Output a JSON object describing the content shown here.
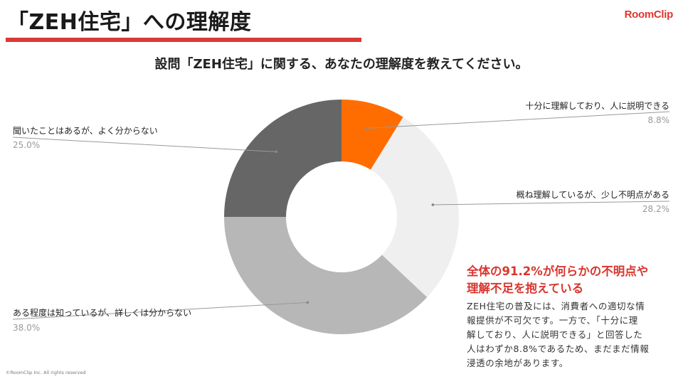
{
  "header": {
    "title": "「ZEH住宅」への理解度",
    "logo": "RoomClip"
  },
  "question": "設問「ZEH住宅」に関する、あなたの理解度を教えてください。",
  "chart_data": {
    "type": "pie",
    "donut": true,
    "legend_placement": "outside-with-leader-lines",
    "slices": [
      {
        "label": "十分に理解しており、人に説明できる",
        "value": 8.8,
        "value_label": "8.8%",
        "color": "#ff6d01"
      },
      {
        "label": "概ね理解しているが、少し不明点がある",
        "value": 28.2,
        "value_label": "28.2%",
        "color": "#efefef"
      },
      {
        "label": "ある程度は知っているが、詳しくは分からない",
        "value": 38.0,
        "value_label": "38.0%",
        "color": "#b7b7b7"
      },
      {
        "label": "聞いたことはあるが、よく分からない",
        "value": 25.0,
        "value_label": "25.0%",
        "color": "#666666"
      }
    ]
  },
  "callout": {
    "heading_line1": "全体の91.2%が何らかの不明点や",
    "heading_line2": "理解不足を抱えている",
    "body_lines": [
      "ZEH住宅の普及には、消費者への適切な情",
      "報提供が不可欠です。一方で、「十分に理",
      "解しており、人に説明できる」と回答した",
      "人はわずか8.8%であるため、まだまだ情報",
      "浸透の余地があります。"
    ]
  },
  "footer": {
    "copyright": "©RoomClip Inc. All rights reserved"
  }
}
